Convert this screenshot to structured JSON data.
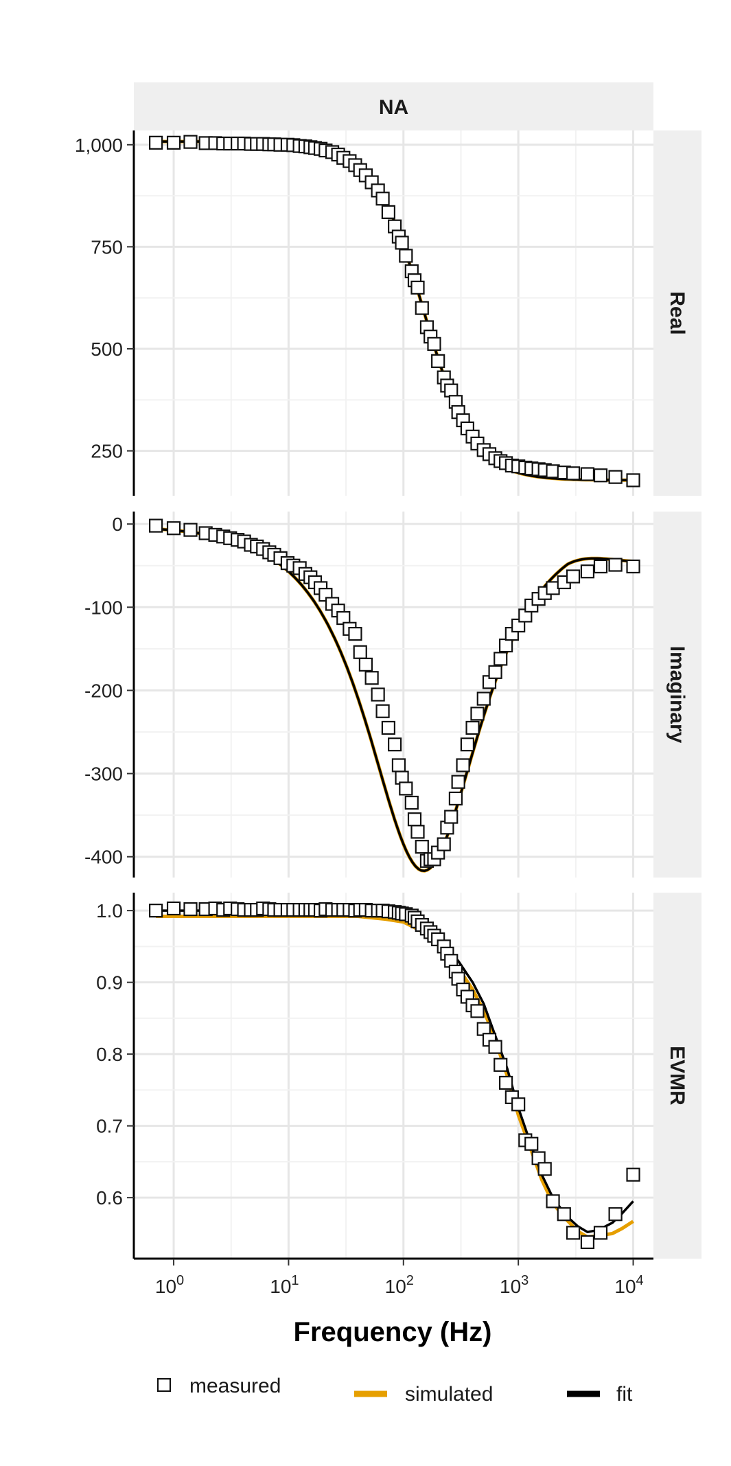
{
  "chart_data": {
    "type": "scatter",
    "facet_title": "NA",
    "xlabel": "Frequency (Hz)",
    "x_scale": "log10",
    "xlim": [
      0.45,
      15000
    ],
    "x_ticks": [
      {
        "value": 1,
        "base": "10",
        "exp": "0"
      },
      {
        "value": 10,
        "base": "10",
        "exp": "1"
      },
      {
        "value": 100,
        "base": "10",
        "exp": "2"
      },
      {
        "value": 1000,
        "base": "10",
        "exp": "3"
      },
      {
        "value": 10000,
        "base": "10",
        "exp": "4"
      }
    ],
    "grid": true,
    "legend_position": "bottom",
    "legend": [
      {
        "label": "measured",
        "type": "square"
      },
      {
        "label": "simulated",
        "type": "line",
        "color": "#E69F00"
      },
      {
        "label": "fit",
        "type": "line",
        "color": "#000000"
      }
    ],
    "panels": [
      {
        "strip": "Real",
        "ylim": [
          140,
          1035
        ],
        "y_ticks": [
          {
            "value": 250,
            "label": "250"
          },
          {
            "value": 500,
            "label": "500"
          },
          {
            "value": 750,
            "label": "750"
          },
          {
            "value": 1000,
            "label": "1,000"
          }
        ],
        "model": {
          "type": "debye",
          "eps_inf": 178,
          "delta": 830,
          "tau": 0.00106
        },
        "measured": [
          [
            0.7,
            1005
          ],
          [
            1.0,
            1005
          ],
          [
            1.4,
            1007
          ],
          [
            1.9,
            1004
          ],
          [
            2.3,
            1004
          ],
          [
            2.7,
            1003
          ],
          [
            3.1,
            1003
          ],
          [
            3.6,
            1003
          ],
          [
            4.1,
            1003
          ],
          [
            4.7,
            1002
          ],
          [
            5.3,
            1002
          ],
          [
            6.0,
            1002
          ],
          [
            6.8,
            1001
          ],
          [
            7.5,
            1001
          ],
          [
            8.5,
            1000
          ],
          [
            9.8,
            1000
          ],
          [
            11,
            999
          ],
          [
            12.5,
            997
          ],
          [
            14,
            996
          ],
          [
            15.5,
            994
          ],
          [
            17,
            992
          ],
          [
            19,
            990
          ],
          [
            21,
            986
          ],
          [
            24,
            982
          ],
          [
            27,
            976
          ],
          [
            30,
            968
          ],
          [
            34,
            960
          ],
          [
            38,
            950
          ],
          [
            42,
            938
          ],
          [
            47,
            925
          ],
          [
            53,
            908
          ],
          [
            60,
            888
          ],
          [
            66,
            868
          ],
          [
            74,
            835
          ],
          [
            84,
            800
          ],
          [
            91,
            775
          ],
          [
            97,
            760
          ],
          [
            105,
            728
          ],
          [
            118,
            690
          ],
          [
            125,
            668
          ],
          [
            133,
            650
          ],
          [
            145,
            600
          ],
          [
            160,
            553
          ],
          [
            172,
            530
          ],
          [
            185,
            512
          ],
          [
            200,
            470
          ],
          [
            225,
            430
          ],
          [
            240,
            410
          ],
          [
            260,
            398
          ],
          [
            285,
            370
          ],
          [
            300,
            345
          ],
          [
            330,
            325
          ],
          [
            360,
            305
          ],
          [
            400,
            285
          ],
          [
            440,
            268
          ],
          [
            500,
            252
          ],
          [
            560,
            242
          ],
          [
            630,
            232
          ],
          [
            700,
            225
          ],
          [
            780,
            220
          ],
          [
            880,
            214
          ],
          [
            1000,
            212
          ],
          [
            1150,
            209
          ],
          [
            1300,
            207
          ],
          [
            1500,
            205
          ],
          [
            1700,
            203
          ],
          [
            2000,
            200
          ],
          [
            2500,
            197
          ],
          [
            3000,
            195
          ],
          [
            4000,
            193
          ],
          [
            5200,
            190
          ],
          [
            7000,
            186
          ],
          [
            10000,
            178
          ]
        ]
      },
      {
        "strip": "Imaginary",
        "ylim": [
          -425,
          15
        ],
        "y_ticks": [
          {
            "value": 0,
            "label": "0"
          },
          {
            "value": -100,
            "label": "-100"
          },
          {
            "value": -200,
            "label": "-200"
          },
          {
            "value": -300,
            "label": "-300"
          },
          {
            "value": -400,
            "label": "-400"
          }
        ],
        "model": {
          "type": "debye_imag",
          "delta": 830,
          "tau": 0.00106,
          "offset": -2,
          "floor": -48
        },
        "measured": [
          [
            0.7,
            -2
          ],
          [
            1.0,
            -5
          ],
          [
            1.4,
            -7
          ],
          [
            1.9,
            -11
          ],
          [
            2.3,
            -13
          ],
          [
            2.7,
            -15
          ],
          [
            3.1,
            -17
          ],
          [
            3.6,
            -19
          ],
          [
            4.1,
            -21
          ],
          [
            4.7,
            -25
          ],
          [
            5.3,
            -27
          ],
          [
            6.0,
            -30
          ],
          [
            6.8,
            -34
          ],
          [
            7.5,
            -37
          ],
          [
            8.5,
            -41
          ],
          [
            9.8,
            -47
          ],
          [
            11,
            -50
          ],
          [
            12.5,
            -53
          ],
          [
            14,
            -60
          ],
          [
            15.5,
            -64
          ],
          [
            17,
            -70
          ],
          [
            19,
            -77
          ],
          [
            21,
            -85
          ],
          [
            24,
            -96
          ],
          [
            27,
            -104
          ],
          [
            30,
            -113
          ],
          [
            34,
            -126
          ],
          [
            38,
            -132
          ],
          [
            42,
            -154
          ],
          [
            47,
            -169
          ],
          [
            53,
            -185
          ],
          [
            60,
            -205
          ],
          [
            66,
            -225
          ],
          [
            74,
            -245
          ],
          [
            84,
            -265
          ],
          [
            91,
            -290
          ],
          [
            97,
            -305
          ],
          [
            105,
            -318
          ],
          [
            118,
            -335
          ],
          [
            125,
            -355
          ],
          [
            133,
            -370
          ],
          [
            145,
            -388
          ],
          [
            160,
            -405
          ],
          [
            172,
            -403
          ],
          [
            185,
            -403
          ],
          [
            200,
            -395
          ],
          [
            225,
            -385
          ],
          [
            240,
            -365
          ],
          [
            260,
            -352
          ],
          [
            285,
            -330
          ],
          [
            300,
            -310
          ],
          [
            330,
            -290
          ],
          [
            360,
            -265
          ],
          [
            400,
            -245
          ],
          [
            440,
            -228
          ],
          [
            500,
            -210
          ],
          [
            560,
            -190
          ],
          [
            630,
            -178
          ],
          [
            700,
            -162
          ],
          [
            780,
            -146
          ],
          [
            880,
            -132
          ],
          [
            1000,
            -122
          ],
          [
            1150,
            -110
          ],
          [
            1300,
            -98
          ],
          [
            1500,
            -90
          ],
          [
            1700,
            -83
          ],
          [
            2000,
            -77
          ],
          [
            2500,
            -70
          ],
          [
            3000,
            -63
          ],
          [
            4000,
            -57
          ],
          [
            5200,
            -51
          ],
          [
            7000,
            -49
          ],
          [
            10000,
            -51
          ]
        ]
      },
      {
        "strip": "EVMR",
        "ylim": [
          0.515,
          1.025
        ],
        "y_ticks": [
          {
            "value": 0.6,
            "label": "0.6"
          },
          {
            "value": 0.7,
            "label": "0.7"
          },
          {
            "value": 0.8,
            "label": "0.8"
          },
          {
            "value": 0.9,
            "label": "0.9"
          },
          {
            "value": 1.0,
            "label": "1.0"
          }
        ],
        "simulated_curve": [
          [
            0.7,
            0.992
          ],
          [
            10,
            0.992
          ],
          [
            40,
            0.992
          ],
          [
            70,
            0.988
          ],
          [
            100,
            0.984
          ],
          [
            150,
            0.97
          ],
          [
            200,
            0.952
          ],
          [
            300,
            0.92
          ],
          [
            400,
            0.89
          ],
          [
            500,
            0.86
          ],
          [
            600,
            0.83
          ],
          [
            800,
            0.77
          ],
          [
            1000,
            0.715
          ],
          [
            1300,
            0.665
          ],
          [
            1600,
            0.625
          ],
          [
            2000,
            0.592
          ],
          [
            2600,
            0.57
          ],
          [
            3300,
            0.553
          ],
          [
            4000,
            0.545
          ],
          [
            5000,
            0.547
          ],
          [
            6600,
            0.55
          ],
          [
            8000,
            0.557
          ],
          [
            10000,
            0.567
          ]
        ],
        "fit_curve": [
          [
            0.7,
            1.0
          ],
          [
            10,
            1.0
          ],
          [
            50,
            1.0
          ],
          [
            80,
            0.997
          ],
          [
            100,
            0.995
          ],
          [
            150,
            0.98
          ],
          [
            200,
            0.96
          ],
          [
            300,
            0.93
          ],
          [
            400,
            0.9
          ],
          [
            500,
            0.87
          ],
          [
            600,
            0.835
          ],
          [
            800,
            0.78
          ],
          [
            1000,
            0.725
          ],
          [
            1300,
            0.672
          ],
          [
            1600,
            0.632
          ],
          [
            2000,
            0.6
          ],
          [
            2600,
            0.575
          ],
          [
            3300,
            0.56
          ],
          [
            4000,
            0.552
          ],
          [
            5000,
            0.555
          ],
          [
            6600,
            0.565
          ],
          [
            8000,
            0.578
          ],
          [
            10000,
            0.595
          ]
        ],
        "measured": [
          [
            0.7,
            1.0
          ],
          [
            1.0,
            1.003
          ],
          [
            1.4,
            1.002
          ],
          [
            1.9,
            1.002
          ],
          [
            2.3,
            1.003
          ],
          [
            2.7,
            1.001
          ],
          [
            3.1,
            1.003
          ],
          [
            3.6,
            1.002
          ],
          [
            4.1,
            1.001
          ],
          [
            4.7,
            1.001
          ],
          [
            5.3,
            1.001
          ],
          [
            6.0,
            1.003
          ],
          [
            6.8,
            1.002
          ],
          [
            7.5,
            1.001
          ],
          [
            8.5,
            1.001
          ],
          [
            9.8,
            1.001
          ],
          [
            11,
            1.001
          ],
          [
            12.5,
            1.001
          ],
          [
            14,
            1.001
          ],
          [
            15.5,
            1.001
          ],
          [
            17,
            1.001
          ],
          [
            19,
            1.0
          ],
          [
            21,
            1.002
          ],
          [
            24,
            1.001
          ],
          [
            27,
            1.001
          ],
          [
            30,
            1.001
          ],
          [
            34,
            1.001
          ],
          [
            38,
            1.0
          ],
          [
            42,
            1.001
          ],
          [
            47,
            1.001
          ],
          [
            53,
            1.0
          ],
          [
            60,
            1.0
          ],
          [
            66,
            1.0
          ],
          [
            74,
            0.999
          ],
          [
            84,
            0.998
          ],
          [
            91,
            0.997
          ],
          [
            97,
            0.996
          ],
          [
            105,
            0.995
          ],
          [
            118,
            0.993
          ],
          [
            125,
            0.99
          ],
          [
            133,
            0.985
          ],
          [
            145,
            0.98
          ],
          [
            160,
            0.975
          ],
          [
            172,
            0.97
          ],
          [
            185,
            0.965
          ],
          [
            200,
            0.96
          ],
          [
            225,
            0.95
          ],
          [
            240,
            0.94
          ],
          [
            260,
            0.93
          ],
          [
            285,
            0.915
          ],
          [
            300,
            0.905
          ],
          [
            330,
            0.89
          ],
          [
            360,
            0.88
          ],
          [
            400,
            0.868
          ],
          [
            440,
            0.86
          ],
          [
            500,
            0.835
          ],
          [
            560,
            0.82
          ],
          [
            630,
            0.81
          ],
          [
            700,
            0.785
          ],
          [
            780,
            0.76
          ],
          [
            880,
            0.74
          ],
          [
            1000,
            0.73
          ],
          [
            1150,
            0.68
          ],
          [
            1300,
            0.675
          ],
          [
            1500,
            0.655
          ],
          [
            1700,
            0.64
          ],
          [
            2000,
            0.595
          ],
          [
            2500,
            0.577
          ],
          [
            3000,
            0.551
          ],
          [
            4000,
            0.538
          ],
          [
            5200,
            0.551
          ],
          [
            7000,
            0.577
          ],
          [
            10000,
            0.632
          ]
        ]
      }
    ]
  }
}
